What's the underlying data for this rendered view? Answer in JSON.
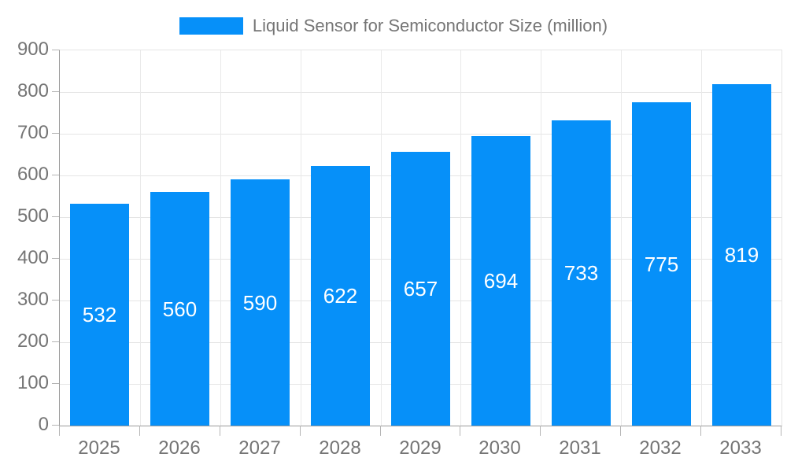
{
  "legend": {
    "label": "Liquid Sensor for Semiconductor Size (million)",
    "swatch_color": "#0690f9"
  },
  "chart_data": {
    "type": "bar",
    "title": "Liquid Sensor for Semiconductor Size (million)",
    "categories": [
      "2025",
      "2026",
      "2027",
      "2028",
      "2029",
      "2030",
      "2031",
      "2032",
      "2033"
    ],
    "values": [
      532,
      560,
      590,
      622,
      657,
      694,
      733,
      775,
      819
    ],
    "series": [
      {
        "name": "Liquid Sensor for Semiconductor Size (million)",
        "values": [
          532,
          560,
          590,
          622,
          657,
          694,
          733,
          775,
          819
        ]
      }
    ],
    "xlabel": "",
    "ylabel": "",
    "ylim": [
      0,
      900
    ],
    "ytick_step": 100,
    "ytick_labels": [
      "0",
      "100",
      "200",
      "300",
      "400",
      "500",
      "600",
      "700",
      "800",
      "900"
    ],
    "grid": true,
    "legend_position": "top-center",
    "value_labels": "inside-center",
    "colors": {
      "bar": "#0690f9",
      "value_label": "#ffffff",
      "axis_text": "#757575",
      "axis_line": "#9b9b9b",
      "tick": "#b5b5b5",
      "grid_h": "#e5e5e5",
      "grid_v": "#e9e9e9",
      "background": "#ffffff"
    }
  }
}
